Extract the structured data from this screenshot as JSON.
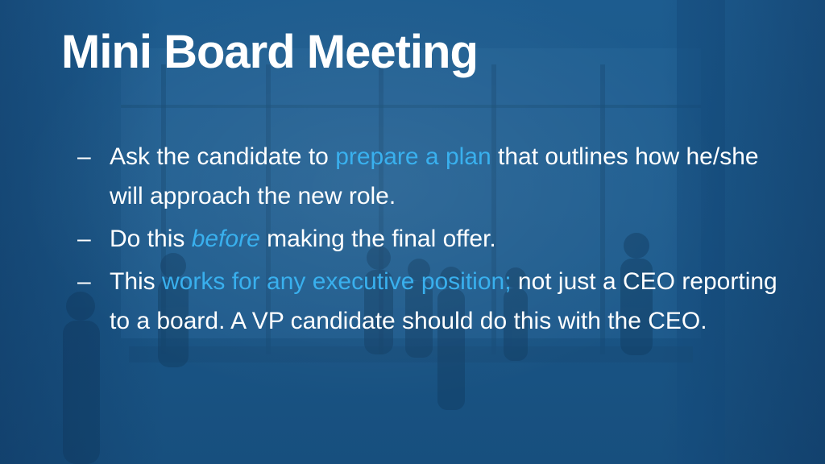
{
  "slide": {
    "title": "Mini Board Meeting",
    "bullet_marker": "–",
    "bullets": [
      {
        "pre": "Ask the candidate to ",
        "highlight": "prepare a plan",
        "post": " that outlines how he/she will approach the new role."
      },
      {
        "pre": "Do this ",
        "emphasis": "before",
        "post": " making the final offer."
      },
      {
        "pre": "This ",
        "highlight": "works for any executive position;",
        "post": " not just a CEO reporting to a board. A VP candidate should do this with the CEO."
      }
    ]
  },
  "colors": {
    "background": "#1b5889",
    "text": "#ffffff",
    "highlight": "#39b0ee"
  }
}
